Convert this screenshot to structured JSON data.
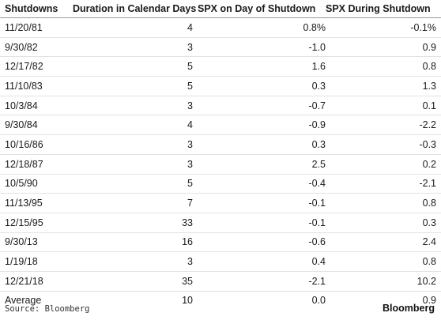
{
  "table": {
    "headers": [
      "Shutdowns",
      "Duration in Calendar Days",
      "SPX on Day of Shutdown",
      "SPX During Shutdown"
    ],
    "rows": [
      {
        "date": "11/20/81",
        "duration": "4",
        "spx_day": "0.8%",
        "spx_during": "-0.1%"
      },
      {
        "date": "9/30/82",
        "duration": "3",
        "spx_day": "-1.0",
        "spx_during": "0.9"
      },
      {
        "date": "12/17/82",
        "duration": "5",
        "spx_day": "1.6",
        "spx_during": "0.8"
      },
      {
        "date": "11/10/83",
        "duration": "5",
        "spx_day": "0.3",
        "spx_during": "1.3"
      },
      {
        "date": "10/3/84",
        "duration": "3",
        "spx_day": "-0.7",
        "spx_during": "0.1"
      },
      {
        "date": "9/30/84",
        "duration": "4",
        "spx_day": "-0.9",
        "spx_during": "-2.2"
      },
      {
        "date": "10/16/86",
        "duration": "3",
        "spx_day": "0.3",
        "spx_during": "-0.3"
      },
      {
        "date": "12/18/87",
        "duration": "3",
        "spx_day": "2.5",
        "spx_during": "0.2"
      },
      {
        "date": "10/5/90",
        "duration": "5",
        "spx_day": "-0.4",
        "spx_during": "-2.1"
      },
      {
        "date": "11/13/95",
        "duration": "7",
        "spx_day": "-0.1",
        "spx_during": "0.8"
      },
      {
        "date": "12/15/95",
        "duration": "33",
        "spx_day": "-0.1",
        "spx_during": "0.3"
      },
      {
        "date": "9/30/13",
        "duration": "16",
        "spx_day": "-0.6",
        "spx_during": "2.4"
      },
      {
        "date": "1/19/18",
        "duration": "3",
        "spx_day": "0.4",
        "spx_during": "0.8"
      },
      {
        "date": "12/21/18",
        "duration": "35",
        "spx_day": "-2.1",
        "spx_during": "10.2"
      },
      {
        "date": "Average",
        "duration": "10",
        "spx_day": "0.0",
        "spx_during": "0.9"
      }
    ]
  },
  "footer": {
    "source": "Source: Bloomberg",
    "brand": "Bloomberg"
  }
}
